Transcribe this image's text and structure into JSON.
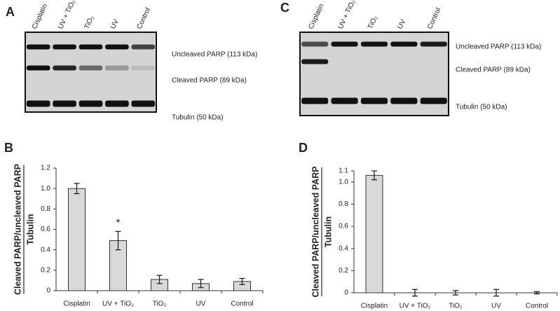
{
  "blots": [
    {
      "label": "A",
      "lanes": [
        "Cisplatin",
        "UV + TiO₂",
        "TiO₂",
        "UV",
        "Control"
      ],
      "bands": [
        "Uncleaved PARP (113 kDa)",
        "Cleaved PARP (89 kDa)",
        "Tubulin (50 kDa)"
      ]
    },
    {
      "label": "C",
      "lanes": [
        "Cisplatin",
        "UV + TiO₂",
        "TiO₂",
        "UV",
        "Control"
      ],
      "bands": [
        "Uncleaved PARP (113 kDa)",
        "Cleaved PARP (89 kDa)",
        "Tubulin (50 kDa)"
      ]
    }
  ],
  "chart_data": [
    {
      "type": "bar",
      "label": "B",
      "y_label": "Cleaved PARP/uncleaved PARP",
      "y_label_denominator": "Tubulin",
      "categories": [
        "Cisplatin",
        "UV + TiO₂",
        "TiO₂",
        "UV",
        "Control"
      ],
      "values": [
        1.0,
        0.49,
        0.11,
        0.07,
        0.09
      ],
      "errors": [
        0.05,
        0.09,
        0.04,
        0.04,
        0.03
      ],
      "markers": [
        null,
        "*",
        null,
        null,
        null
      ],
      "color": "#d9d9d9",
      "ylim": [
        0,
        1.2
      ],
      "yticks": [
        0,
        0.2,
        0.4,
        0.6,
        0.8,
        {
          "value": 1,
          "label": "1.0"
        },
        1.2
      ]
    },
    {
      "type": "bar",
      "label": "D",
      "y_label": "Cleaved PARP/uncleaved PARP",
      "y_label_denominator": "Tubulin",
      "categories": [
        "Cisplatin",
        "UV + TiO₂",
        "TiO₂",
        "UV",
        "Control"
      ],
      "values": [
        1.06,
        0,
        0,
        0,
        0
      ],
      "errors": [
        0.04,
        0.03,
        0.02,
        0.03,
        0.01
      ],
      "color": "#d9d9d9",
      "ylim": [
        0,
        1.1
      ],
      "yticks": [
        0,
        0.2,
        0.4,
        0.6,
        0.8,
        {
          "value": 1,
          "label": "1.0"
        },
        1.1
      ]
    }
  ]
}
